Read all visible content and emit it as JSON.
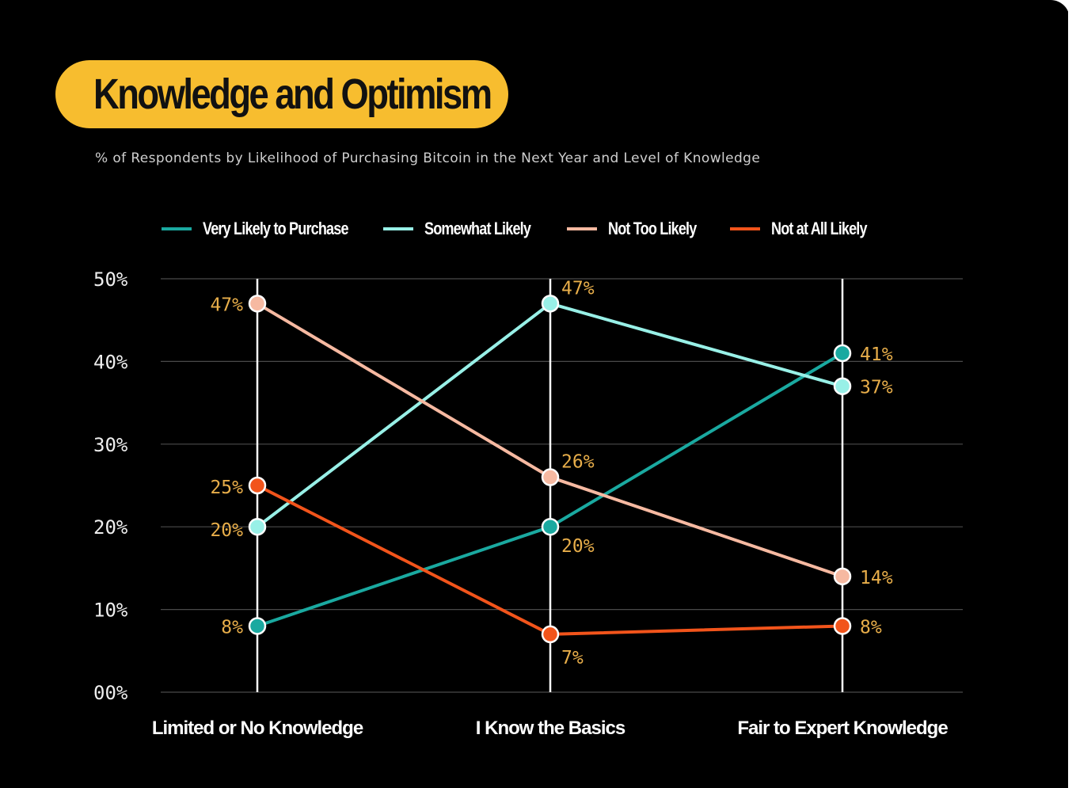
{
  "chart_data": {
    "type": "line",
    "title": "Knowledge and Optimism",
    "subtitle": "% of Respondents by Likelihood of Purchasing Bitcoin in the Next Year and Level of Knowledge",
    "categories": [
      "Limited or No Knowledge",
      "I Know the Basics",
      "Fair to Expert Knowledge"
    ],
    "y_ticks": [
      "00%",
      "10%",
      "20%",
      "30%",
      "40%",
      "50%"
    ],
    "ylim": [
      0,
      50
    ],
    "grid": true,
    "legend_position": "top",
    "series": [
      {
        "name": "Very Likely to Purchase",
        "color": "#1aa9a0",
        "values": [
          8,
          20,
          41
        ],
        "labels": [
          "8%",
          "20%",
          "41%"
        ]
      },
      {
        "name": "Somewhat Likely",
        "color": "#98f0e7",
        "values": [
          20,
          47,
          37
        ],
        "labels": [
          "20%",
          "47%",
          "37%"
        ]
      },
      {
        "name": "Not Too Likely",
        "color": "#f6b9a1",
        "values": [
          47,
          26,
          14
        ],
        "labels": [
          "47%",
          "26%",
          "14%"
        ]
      },
      {
        "name": "Not at All Likely",
        "color": "#f2541b",
        "values": [
          25,
          7,
          8
        ],
        "labels": [
          "25%",
          "7%",
          "8%"
        ]
      }
    ]
  }
}
